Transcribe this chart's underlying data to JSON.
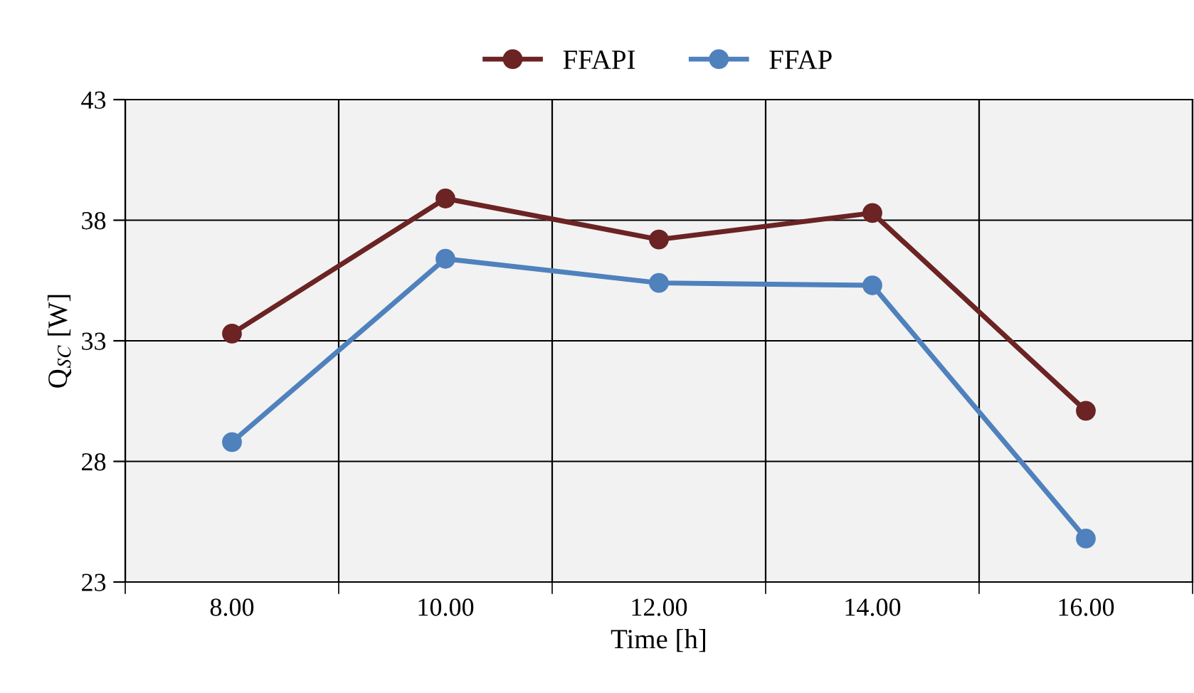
{
  "chart_data": {
    "type": "line",
    "xlabel": "Time [h]",
    "ylabel": "Q$_{SC}$ [W]",
    "categories": [
      "8.00",
      "10.00",
      "12.00",
      "14.00",
      "16.00"
    ],
    "series": [
      {
        "name": "FFAPI",
        "color": "#6b2323",
        "values": [
          33.3,
          38.9,
          37.2,
          38.3,
          30.1
        ]
      },
      {
        "name": "FFAP",
        "color": "#4f81bd",
        "values": [
          28.8,
          36.4,
          35.4,
          35.3,
          24.8
        ]
      }
    ],
    "ylim": [
      23,
      43
    ],
    "yticks": [
      23,
      28,
      33,
      38,
      43
    ],
    "grid": true,
    "legend": "top",
    "marker": "circle",
    "line_style": "solid"
  }
}
